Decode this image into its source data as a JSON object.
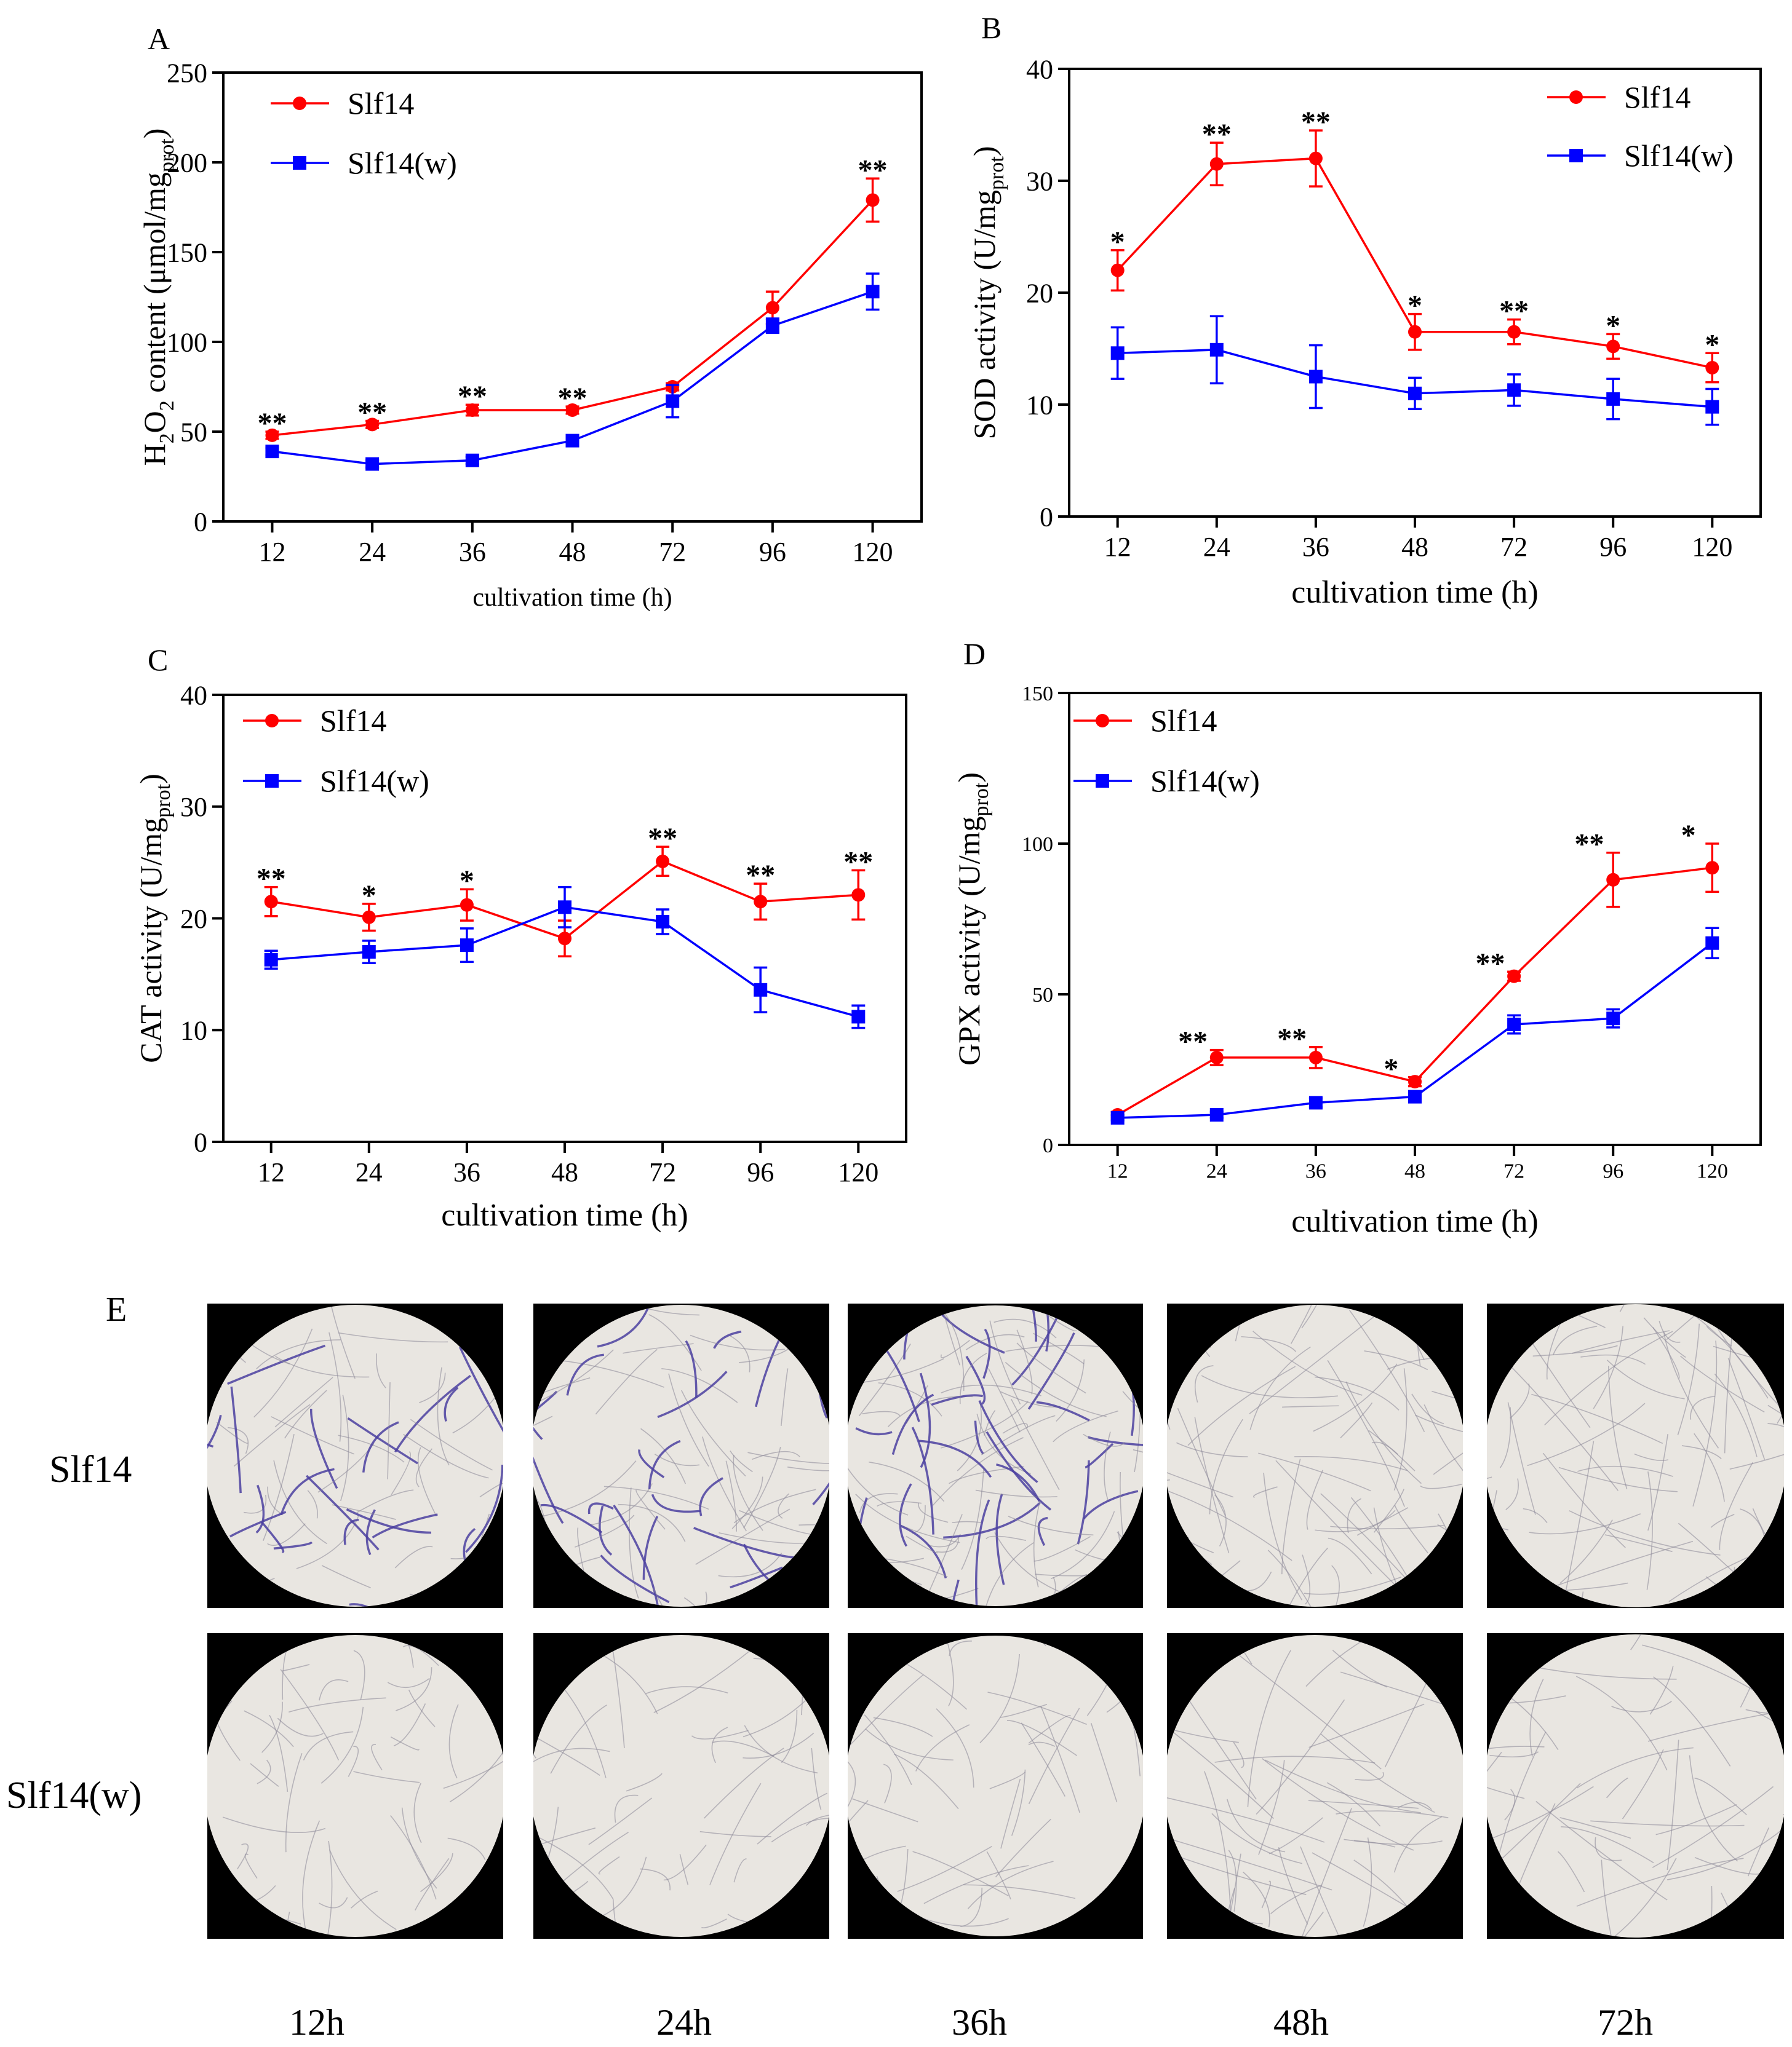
{
  "chart_data": [
    {
      "panel": "A",
      "type": "line",
      "categories": [
        "12",
        "24",
        "36",
        "48",
        "72",
        "96",
        "120"
      ],
      "xlabel": "cultivation time (h)",
      "ylabel_parts": [
        "H",
        "2",
        "O",
        "2",
        " content (μmol/mg",
        "prot",
        ")"
      ],
      "ylim": [
        0,
        250
      ],
      "yticks": [
        0,
        50,
        100,
        150,
        200,
        250
      ],
      "legend_position": "top-left",
      "series": [
        {
          "name": "Slf14",
          "color": "#ff0000",
          "marker": "circle",
          "values": [
            48,
            54,
            62,
            62,
            75,
            119,
            179
          ],
          "errors": [
            2,
            2,
            3,
            2,
            2,
            9,
            12
          ]
        },
        {
          "name": "Slf14(w)",
          "color": "#0000ff",
          "marker": "square",
          "values": [
            39,
            32,
            34,
            45,
            67,
            109,
            128
          ],
          "errors": [
            2,
            2,
            2,
            2,
            9,
            4,
            10
          ]
        }
      ],
      "significance": [
        "**",
        "**",
        "**",
        "**",
        "",
        "",
        "**"
      ]
    },
    {
      "panel": "B",
      "type": "line",
      "categories": [
        "12",
        "24",
        "36",
        "48",
        "72",
        "96",
        "120"
      ],
      "xlabel": "cultivation time (h)",
      "ylabel_parts": [
        "SOD activity (U/mg",
        "prot",
        ")"
      ],
      "ylim": [
        0,
        40
      ],
      "yticks": [
        0,
        10,
        20,
        30,
        40
      ],
      "legend_position": "top-right",
      "series": [
        {
          "name": "Slf14",
          "color": "#ff0000",
          "marker": "circle",
          "values": [
            22,
            31.5,
            32,
            16.5,
            16.5,
            15.2,
            13.3
          ],
          "errors": [
            1.8,
            1.9,
            2.5,
            1.6,
            1.1,
            1.1,
            1.3
          ]
        },
        {
          "name": "Slf14(w)",
          "color": "#0000ff",
          "marker": "square",
          "values": [
            14.6,
            14.9,
            12.5,
            11,
            11.3,
            10.5,
            9.8
          ],
          "errors": [
            2.3,
            3,
            2.8,
            1.4,
            1.4,
            1.8,
            1.6
          ]
        }
      ],
      "significance": [
        "*",
        "**",
        "**",
        "*",
        "**",
        "*",
        "*"
      ]
    },
    {
      "panel": "C",
      "type": "line",
      "categories": [
        "12",
        "24",
        "36",
        "48",
        "72",
        "96",
        "120"
      ],
      "xlabel": "cultivation time (h)",
      "ylabel_parts": [
        "CAT activity (U/mg",
        "prot",
        ")"
      ],
      "ylim": [
        0,
        40
      ],
      "yticks": [
        0,
        10,
        20,
        30,
        40
      ],
      "legend_position": "top-left",
      "series": [
        {
          "name": "Slf14",
          "color": "#ff0000",
          "marker": "circle",
          "values": [
            21.5,
            20.1,
            21.2,
            18.2,
            25.1,
            21.5,
            22.1
          ],
          "errors": [
            1.3,
            1.2,
            1.4,
            1.6,
            1.3,
            1.6,
            2.2
          ]
        },
        {
          "name": "Slf14(w)",
          "color": "#0000ff",
          "marker": "square",
          "values": [
            16.3,
            17,
            17.6,
            21,
            19.7,
            13.6,
            11.2
          ],
          "errors": [
            0.8,
            1,
            1.5,
            1.8,
            1.1,
            2,
            1
          ]
        }
      ],
      "significance": [
        "**",
        "*",
        "*",
        "",
        "**",
        "**",
        "**"
      ]
    },
    {
      "panel": "D",
      "type": "line",
      "categories": [
        "12",
        "24",
        "36",
        "48",
        "72",
        "96",
        "120"
      ],
      "xlabel": "cultivation time (h)",
      "ylabel_parts": [
        "GPX activity (U/mg",
        "prot",
        ")"
      ],
      "ylim": [
        0,
        150
      ],
      "yticks": [
        0,
        50,
        100,
        150
      ],
      "legend_position": "top-left",
      "series": [
        {
          "name": "Slf14",
          "color": "#ff0000",
          "marker": "circle",
          "values": [
            10,
            29,
            29,
            21,
            56,
            88,
            92
          ],
          "errors": [
            1,
            2.5,
            3.5,
            1.5,
            1.5,
            9,
            8
          ]
        },
        {
          "name": "Slf14(w)",
          "color": "#0000ff",
          "marker": "square",
          "values": [
            9,
            10,
            14,
            16,
            40,
            42,
            67
          ],
          "errors": [
            0.8,
            1,
            1.5,
            1.5,
            3,
            3,
            5
          ]
        }
      ],
      "significance": [
        "",
        "**",
        "**",
        "*",
        "**",
        "**",
        "*"
      ],
      "significance_offset": "between"
    }
  ],
  "panels": {
    "labels": [
      "A",
      "B",
      "C",
      "D",
      "E"
    ]
  },
  "micrographs": {
    "row_labels": [
      "Slf14",
      "Slf14(w)"
    ],
    "column_labels": [
      "12h",
      "24h",
      "36h",
      "48h",
      "72h"
    ],
    "stain_color": "#4b3fa0",
    "field_color": "#e9e6e1"
  }
}
